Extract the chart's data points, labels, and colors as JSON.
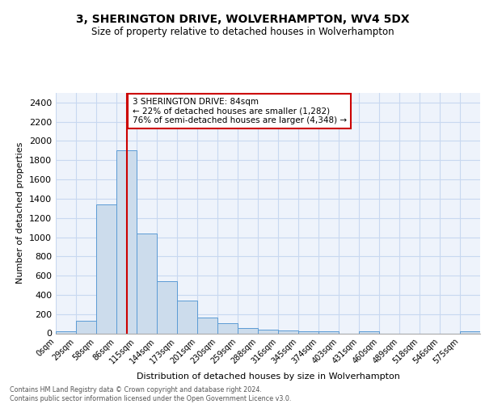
{
  "title1": "3, SHERINGTON DRIVE, WOLVERHAMPTON, WV4 5DX",
  "title2": "Size of property relative to detached houses in Wolverhampton",
  "xlabel": "Distribution of detached houses by size in Wolverhampton",
  "ylabel": "Number of detached properties",
  "bin_labels": [
    "0sqm",
    "29sqm",
    "58sqm",
    "86sqm",
    "115sqm",
    "144sqm",
    "173sqm",
    "201sqm",
    "230sqm",
    "259sqm",
    "288sqm",
    "316sqm",
    "345sqm",
    "374sqm",
    "403sqm",
    "431sqm",
    "460sqm",
    "489sqm",
    "518sqm",
    "546sqm",
    "575sqm"
  ],
  "bar_heights": [
    20,
    130,
    1340,
    1900,
    1040,
    540,
    340,
    165,
    105,
    55,
    35,
    30,
    25,
    20,
    0,
    20,
    0,
    0,
    0,
    0,
    20
  ],
  "bar_color": "#ccdcec",
  "bar_edge_color": "#5b9bd5",
  "grid_color": "#c8d8f0",
  "bg_color": "#eef3fb",
  "vline_x_idx": 3,
  "vline_color": "#cc0000",
  "annotation_text": "3 SHERINGTON DRIVE: 84sqm\n← 22% of detached houses are smaller (1,282)\n76% of semi-detached houses are larger (4,348) →",
  "annotation_box_color": "#ffffff",
  "annotation_box_edge": "#cc0000",
  "ylim": [
    0,
    2500
  ],
  "yticks": [
    0,
    200,
    400,
    600,
    800,
    1000,
    1200,
    1400,
    1600,
    1800,
    2000,
    2200,
    2400
  ],
  "footer1": "Contains HM Land Registry data © Crown copyright and database right 2024.",
  "footer2": "Contains public sector information licensed under the Open Government Licence v3.0."
}
